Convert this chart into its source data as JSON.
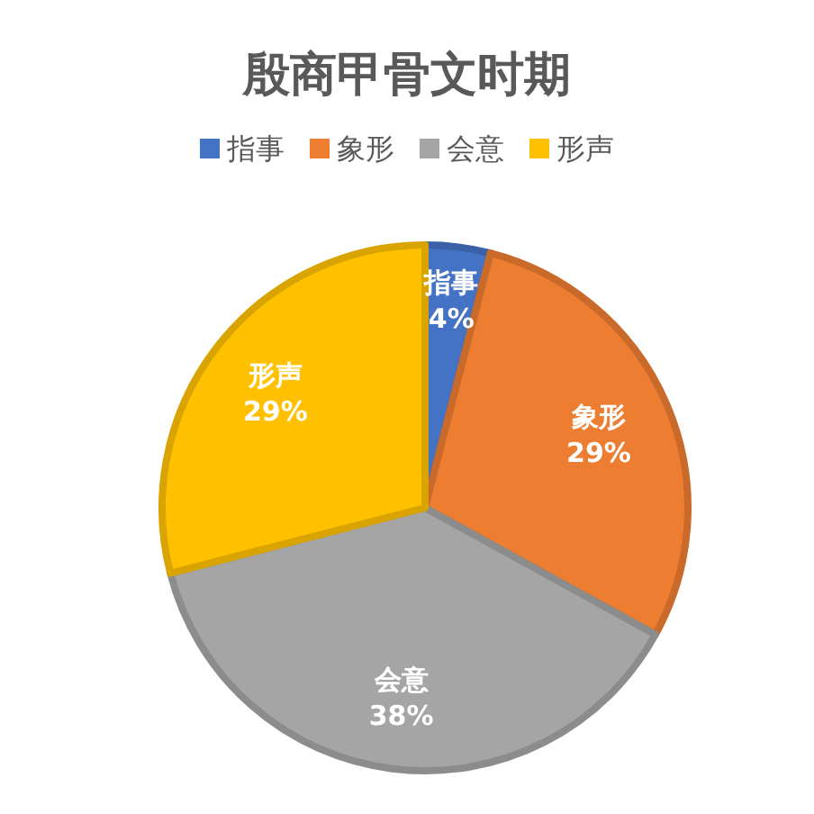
{
  "chart_data": {
    "type": "pie",
    "title": "殷商甲骨文时期",
    "categories": [
      "指事",
      "象形",
      "会意",
      "形声"
    ],
    "values": [
      4,
      29,
      38,
      29
    ],
    "colors": [
      "#4472c4",
      "#ed7d31",
      "#a5a5a5",
      "#ffc000"
    ],
    "value_labels": [
      "4%",
      "29%",
      "38%",
      "29%"
    ],
    "legend": "top"
  }
}
